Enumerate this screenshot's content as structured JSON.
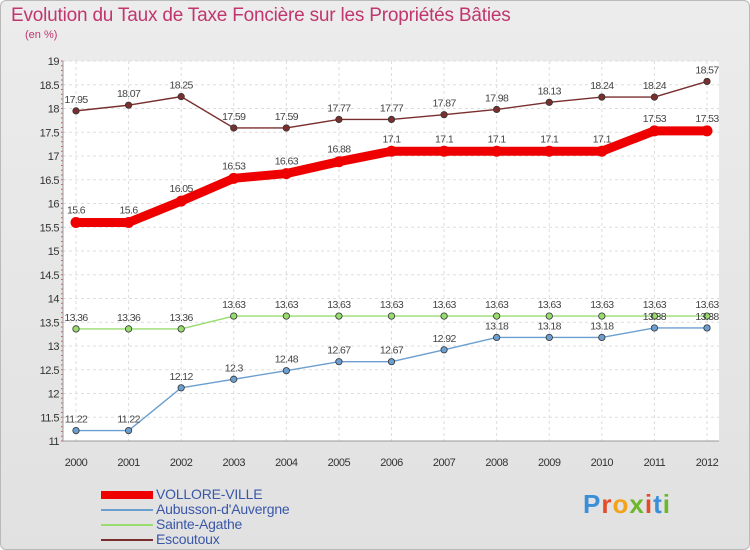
{
  "header": {
    "title": "Evolution du Taux de Taxe Foncière sur les Propriétés Bâties",
    "unit": "(en %)"
  },
  "brand": {
    "logo_letters": [
      "P",
      "r",
      "o",
      "x",
      "i",
      "t",
      "i"
    ],
    "logo_colors": [
      "#3b8ed8",
      "#e34b2a",
      "#f2a21b",
      "#6bb82a",
      "#e34b2a",
      "#3b8ed8",
      "#6bb82a"
    ]
  },
  "chart_data": {
    "type": "line",
    "title": "Evolution du Taux de Taxe Foncière sur les Propriétés Bâties",
    "ylabel": "(en %)",
    "xlabel": "",
    "ylim": [
      11,
      19
    ],
    "yticks": [
      "11",
      "11.5",
      "12",
      "12.5",
      "13",
      "13.5",
      "14",
      "14.5",
      "15",
      "15.5",
      "16",
      "16.5",
      "17",
      "17.5",
      "18",
      "18.5",
      "19"
    ],
    "categories": [
      "2000",
      "2001",
      "2002",
      "2003",
      "2004",
      "2005",
      "2006",
      "2007",
      "2008",
      "2009",
      "2010",
      "2011",
      "2012"
    ],
    "grid": true,
    "legend_position": "bottom-left",
    "series": [
      {
        "name": "VOLLORE-VILLE",
        "color": "#ee0000",
        "values": [
          15.6,
          15.6,
          16.05,
          16.53,
          16.63,
          16.88,
          17.1,
          17.1,
          17.1,
          17.1,
          17.1,
          17.53,
          17.53
        ],
        "labels": [
          "15.6",
          "15.6",
          "16.05",
          "16.53",
          "16.63",
          "16.88",
          "17.1",
          "17.1",
          "17.1",
          "17.1",
          "17.1",
          "17.53",
          "17.53"
        ]
      },
      {
        "name": "Aubusson-d'Auvergne",
        "color": "#6c9fcf",
        "values": [
          11.22,
          11.22,
          12.12,
          12.3,
          12.48,
          12.67,
          12.67,
          12.92,
          13.18,
          13.18,
          13.18,
          13.38,
          13.38
        ],
        "labels": [
          "11.22",
          "11.22",
          "12.12",
          "12.3",
          "12.48",
          "12.67",
          "12.67",
          "12.92",
          "13.18",
          "13.18",
          "13.18",
          "13.38",
          "13.38"
        ]
      },
      {
        "name": "Sainte-Agathe",
        "color": "#98dc70",
        "values": [
          13.36,
          13.36,
          13.36,
          13.63,
          13.63,
          13.63,
          13.63,
          13.63,
          13.63,
          13.63,
          13.63,
          13.63,
          13.63
        ],
        "labels": [
          "13.36",
          "13.36",
          "13.36",
          "13.63",
          "13.63",
          "13.63",
          "13.63",
          "13.63",
          "13.63",
          "13.63",
          "13.63",
          "13.63",
          "13.63"
        ]
      },
      {
        "name": "Escoutoux",
        "color": "#7a2f2f",
        "values": [
          17.95,
          18.07,
          18.25,
          17.59,
          17.59,
          17.77,
          17.77,
          17.87,
          17.98,
          18.13,
          18.24,
          18.24,
          18.57
        ],
        "labels": [
          "17.95",
          "18.07",
          "18.25",
          "17.59",
          "17.59",
          "17.77",
          "17.77",
          "17.87",
          "17.98",
          "18.13",
          "18.24",
          "18.24",
          "18.57"
        ]
      }
    ]
  }
}
